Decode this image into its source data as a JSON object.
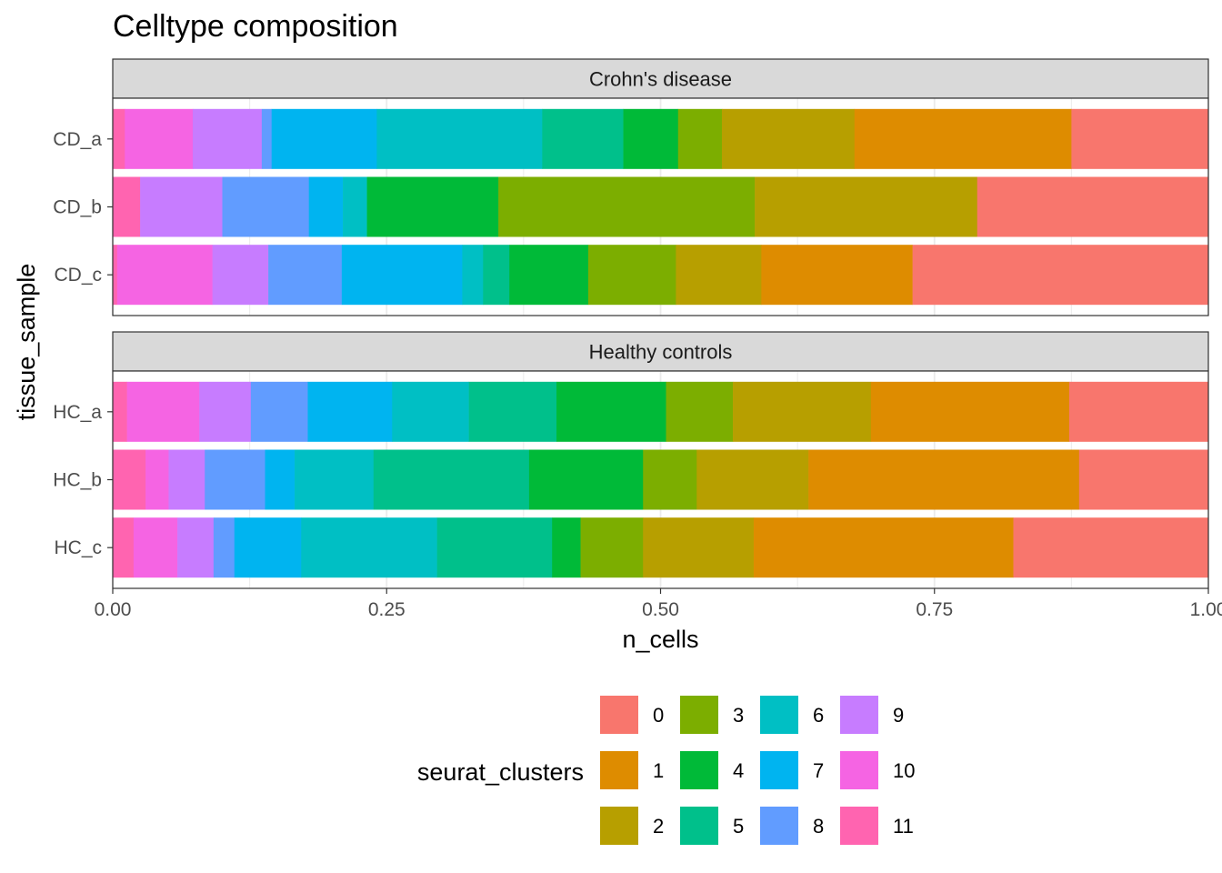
{
  "chart_data": {
    "type": "bar",
    "orientation": "horizontal",
    "stacked": "fill",
    "title": "Celltype composition",
    "xlabel": "n_cells",
    "ylabel": "tissue_sample",
    "xlim": [
      0,
      1
    ],
    "x_ticks": [
      0,
      0.25,
      0.5,
      0.75,
      1
    ],
    "x_tick_labels": [
      "0.00",
      "0.25",
      "0.50",
      "0.75",
      "1.00"
    ],
    "grid": true,
    "legend": {
      "title": "seurat_clusters",
      "position": "bottom",
      "ncol": 4,
      "items": [
        "0",
        "1",
        "2",
        "3",
        "4",
        "5",
        "6",
        "7",
        "8",
        "9",
        "10",
        "11"
      ]
    },
    "colors": [
      "#F8766D",
      "#DE8C00",
      "#B79F00",
      "#7CAE00",
      "#00BA38",
      "#00C08B",
      "#00BFC4",
      "#00B4F0",
      "#619CFF",
      "#C77CFF",
      "#F564E3",
      "#FF64B0"
    ],
    "facets": [
      {
        "label": "Crohn's disease",
        "samples": [
          {
            "name": "CD_c",
            "values": [
              0.27,
              0.138,
              0.078,
              0.08,
              0.072,
              0.024,
              0.019,
              0.11,
              0.067,
              0.051,
              0.087,
              0.004
            ]
          },
          {
            "name": "CD_b",
            "values": [
              0.211,
              0,
              0.203,
              0.234,
              0.12,
              0,
              0.022,
              0.031,
              0.079,
              0.075,
              0,
              0.025
            ]
          },
          {
            "name": "CD_a",
            "values": [
              0.125,
              0.198,
              0.121,
              0.04,
              0.05,
              0.074,
              0.151,
              0.096,
              0.009,
              0.063,
              0.062,
              0.011
            ]
          }
        ]
      },
      {
        "label": "Healthy controls",
        "samples": [
          {
            "name": "HC_c",
            "values": [
              0.178,
              0.237,
              0.101,
              0.057,
              0.026,
              0.105,
              0.124,
              0.061,
              0.019,
              0.033,
              0.04,
              0.019
            ]
          },
          {
            "name": "HC_b",
            "values": [
              0.118,
              0.247,
              0.102,
              0.049,
              0.104,
              0.142,
              0.072,
              0.027,
              0.055,
              0.033,
              0.021,
              0.03
            ]
          },
          {
            "name": "HC_a",
            "values": [
              0.127,
              0.181,
              0.126,
              0.061,
              0.1,
              0.08,
              0.07,
              0.077,
              0.052,
              0.047,
              0.066,
              0.013
            ]
          }
        ]
      }
    ]
  }
}
